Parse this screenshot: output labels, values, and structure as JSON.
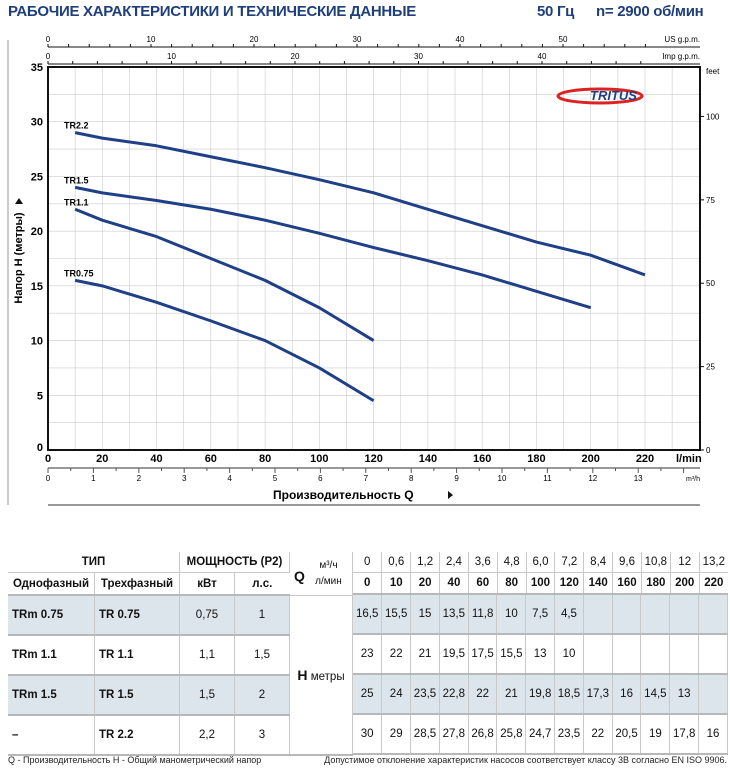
{
  "header": {
    "title": "РАБОЧИЕ ХАРАКТЕРИСТИКИ И ТЕХНИЧЕСКИЕ ДАННЫЕ",
    "freq": "50 Гц",
    "speed": "n= 2900 об/мин"
  },
  "logo": "TRITUS",
  "chart_data": {
    "type": "line",
    "xlabel": "Производительность Q",
    "ylabel": "Напор H (метры)",
    "xunit": "l/min",
    "xlim": [
      0,
      240
    ],
    "ylim": [
      0,
      35
    ],
    "x_ticks": [
      0,
      20,
      40,
      60,
      80,
      100,
      120,
      140,
      160,
      180,
      200,
      220
    ],
    "y_ticks": [
      0,
      5,
      10,
      15,
      20,
      25,
      30,
      35
    ],
    "feet_ticks": [
      0,
      25,
      50,
      75,
      100
    ],
    "feet_label": "feet",
    "us_gpm_ticks": [
      0,
      10,
      20,
      30,
      40,
      50
    ],
    "us_gpm_label": "US g.p.m.",
    "imp_gpm_ticks": [
      0,
      10,
      20,
      30,
      40
    ],
    "imp_gpm_label": "Imp g.p.m.",
    "m3h_ticks": [
      0,
      1,
      2,
      3,
      4,
      5,
      6,
      7,
      8,
      9,
      10,
      11,
      12,
      13
    ],
    "m3h_label": "m³/h",
    "grid": true,
    "series": [
      {
        "name": "TR2.2",
        "x": [
          10,
          20,
          40,
          60,
          80,
          100,
          120,
          140,
          160,
          180,
          200,
          220
        ],
        "y": [
          29,
          28.5,
          27.8,
          26.8,
          25.8,
          24.7,
          23.5,
          22,
          20.5,
          19,
          17.8,
          16
        ]
      },
      {
        "name": "TR1.5",
        "x": [
          10,
          20,
          40,
          60,
          80,
          100,
          120,
          140,
          160,
          180,
          200
        ],
        "y": [
          24,
          23.5,
          22.8,
          22,
          21,
          19.8,
          18.5,
          17.3,
          16,
          14.5,
          13
        ]
      },
      {
        "name": "TR1.1",
        "x": [
          10,
          20,
          40,
          60,
          80,
          100,
          120
        ],
        "y": [
          22,
          21,
          19.5,
          17.5,
          15.5,
          13,
          10
        ]
      },
      {
        "name": "TR0.75",
        "x": [
          10,
          20,
          40,
          60,
          80,
          100,
          120
        ],
        "y": [
          15.5,
          15,
          13.5,
          11.8,
          10,
          7.5,
          4.5
        ]
      }
    ],
    "color": "#1f3f86"
  },
  "table": {
    "type_h": "ТИП",
    "power_h": "МОЩНОСТЬ (P2)",
    "q": "Q",
    "m3h": "м³/ч",
    "lmin": "л/мин",
    "single": "Однофазный",
    "three": "Трехфазный",
    "kw": "кВт",
    "hp": "л.с.",
    "h": "H",
    "meters": "метры",
    "m3h_vals": [
      "0",
      "0,6",
      "1,2",
      "2,4",
      "3,6",
      "4,8",
      "6,0",
      "7,2",
      "8,4",
      "9,6",
      "10,8",
      "12",
      "13,2"
    ],
    "lmin_vals": [
      "0",
      "10",
      "20",
      "40",
      "60",
      "80",
      "100",
      "120",
      "140",
      "160",
      "180",
      "200",
      "220"
    ],
    "rows": [
      {
        "single": "TRm 0.75",
        "three": "TR 0.75",
        "kw": "0,75",
        "hp": "1",
        "h": [
          "16,5",
          "15,5",
          "15",
          "13,5",
          "11,8",
          "10",
          "7,5",
          "4,5",
          "",
          "",
          "",
          "",
          ""
        ]
      },
      {
        "single": "TRm 1.1",
        "three": "TR 1.1",
        "kw": "1,1",
        "hp": "1,5",
        "h": [
          "23",
          "22",
          "21",
          "19,5",
          "17,5",
          "15,5",
          "13",
          "10",
          "",
          "",
          "",
          "",
          ""
        ]
      },
      {
        "single": "TRm 1.5",
        "three": "TR 1.5",
        "kw": "1,5",
        "hp": "2",
        "h": [
          "25",
          "24",
          "23,5",
          "22,8",
          "22",
          "21",
          "19,8",
          "18,5",
          "17,3",
          "16",
          "14,5",
          "13",
          ""
        ]
      },
      {
        "single": "–",
        "three": "TR 2.2",
        "kw": "2,2",
        "hp": "3",
        "h": [
          "30",
          "29",
          "28,5",
          "27,8",
          "26,8",
          "25,8",
          "24,7",
          "23,5",
          "22",
          "20,5",
          "19",
          "17,8",
          "16"
        ]
      }
    ]
  },
  "footer": {
    "left": "Q - Производительность  H - Общий манометрический напор",
    "right": "Допустимое отклонение характеристик насосов соответствует классу 3B согласно EN ISO 9906."
  }
}
